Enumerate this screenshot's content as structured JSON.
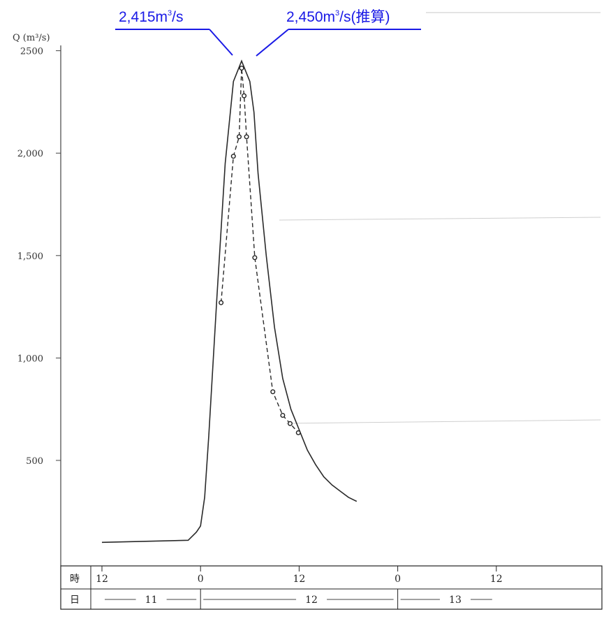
{
  "chart_data": {
    "type": "line",
    "ylabel": "Q (m³/s)",
    "ylim": [
      0,
      2500
    ],
    "y_ticks": [
      {
        "value": 500,
        "label": "500"
      },
      {
        "value": 1000,
        "label": "1,000"
      },
      {
        "value": 1500,
        "label": "1,500"
      },
      {
        "value": 2000,
        "label": "2,000"
      },
      {
        "value": 2500,
        "label": "2500"
      }
    ],
    "time_axis": {
      "range_hours": [
        -4,
        48
      ],
      "row_labels": {
        "hour": "時",
        "day": "日"
      },
      "hour_ticks": [
        {
          "t": 0,
          "label": "12"
        },
        {
          "t": 12,
          "label": "0"
        },
        {
          "t": 24,
          "label": "12"
        },
        {
          "t": 36,
          "label": "0"
        },
        {
          "t": 48,
          "label": "12"
        }
      ],
      "day_labels": [
        {
          "t": 6,
          "label": "11"
        },
        {
          "t": 25.5,
          "label": "12"
        },
        {
          "t": 43,
          "label": "13"
        }
      ]
    },
    "series": [
      {
        "style": "solid",
        "x": [
          0,
          10.5,
          11.5,
          12,
          12.5,
          13,
          14,
          15,
          16,
          17,
          18,
          18.5,
          19,
          20,
          21,
          22,
          23,
          24,
          25,
          26,
          27,
          28,
          29,
          30,
          31
        ],
        "y": [
          100,
          110,
          150,
          180,
          320,
          620,
          1300,
          1950,
          2350,
          2450,
          2350,
          2200,
          1900,
          1500,
          1150,
          900,
          750,
          650,
          550,
          480,
          420,
          380,
          350,
          320,
          300
        ]
      },
      {
        "style": "dashed",
        "markers": true,
        "x": [
          14.5,
          16.0,
          16.7,
          17.0,
          17.3,
          17.6,
          18.6,
          20.8,
          22.0,
          22.9,
          23.9
        ],
        "y": [
          1270,
          1985,
          2080,
          2415,
          2280,
          2080,
          1490,
          835,
          720,
          680,
          635
        ]
      }
    ],
    "annotations": [
      {
        "text": "2,415m",
        "sup": "3",
        "unit": "/s",
        "x": 16.6,
        "y": 2415
      },
      {
        "text": "2,450m",
        "sup": "3",
        "unit": "/s(推算)",
        "x": 17.2,
        "y": 2450
      }
    ]
  }
}
